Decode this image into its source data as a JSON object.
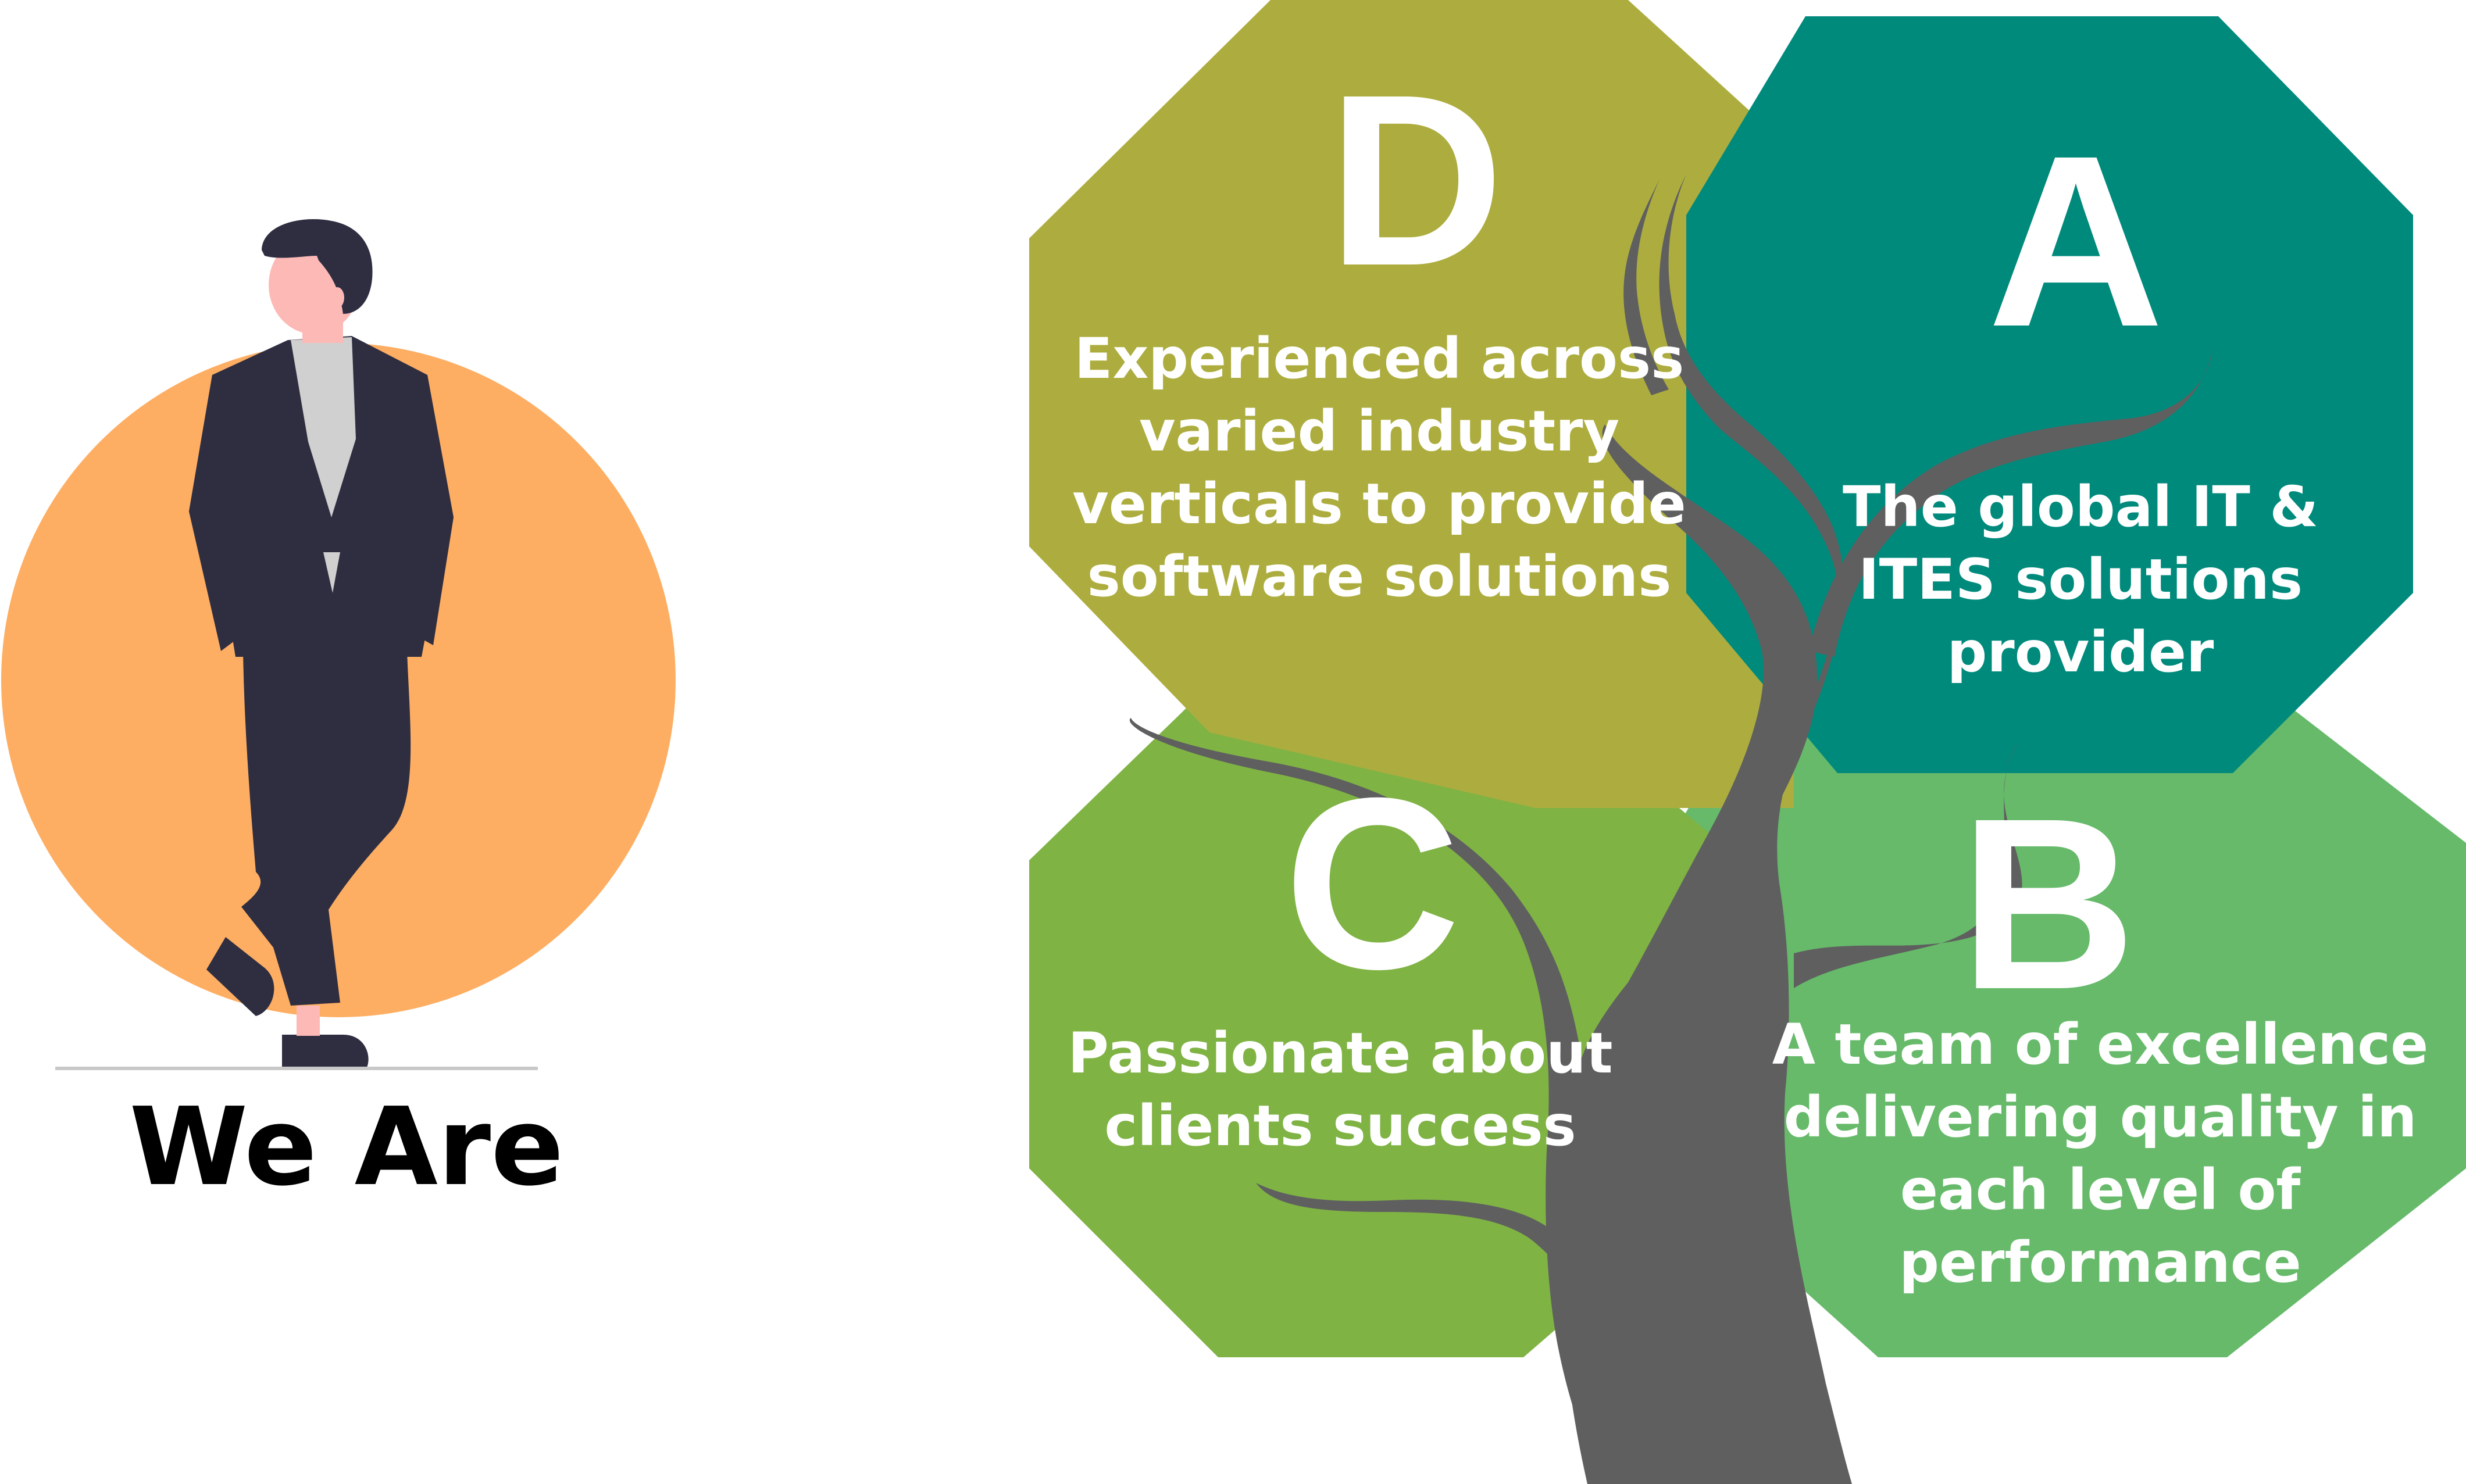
{
  "caption": "We Are",
  "colors": {
    "orange_circle": "#fdae63",
    "suit": "#2f2e41",
    "skin": "#fdb9b6",
    "shirt": "#d0d0d0",
    "olive": "#adad3f",
    "teal": "#008a7c",
    "light_green": "#66ba6a",
    "green": "#7fb344",
    "trunk": "#5f5f5f",
    "divider": "#c8c8c8"
  },
  "quadrants": [
    {
      "id": "d",
      "letter": "D",
      "color": "#adad3f",
      "lines": [
        "Experienced across",
        "varied industry",
        "verticals to provide",
        "software solutions"
      ]
    },
    {
      "id": "a",
      "letter": "A",
      "color": "#008a7c",
      "lines": [
        "The global IT &",
        "ITES solutions",
        "provider"
      ]
    },
    {
      "id": "c",
      "letter": "C",
      "color": "#7fb344",
      "lines": [
        "Passionate about",
        "clients success"
      ]
    },
    {
      "id": "b",
      "letter": "B",
      "color": "#66ba6a",
      "lines": [
        "A team of excellence",
        "delivering quality in",
        "each level of",
        "performance"
      ]
    }
  ]
}
